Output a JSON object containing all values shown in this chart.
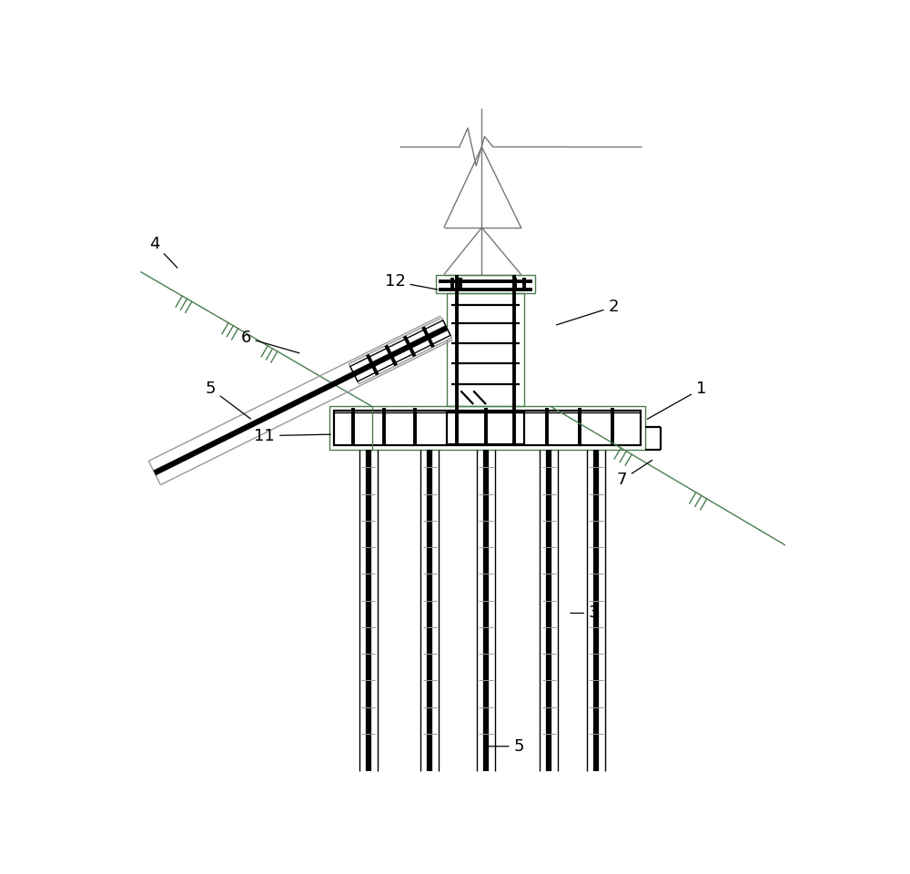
{
  "bg": "#ffffff",
  "black": "#000000",
  "green": "#4a7c50",
  "gray": "#999999",
  "darkgray": "#777777",
  "lw_thin": 1.0,
  "lw_med": 1.6,
  "lw_thick": 2.8,
  "lw_vthick": 4.5,
  "fs": 13
}
